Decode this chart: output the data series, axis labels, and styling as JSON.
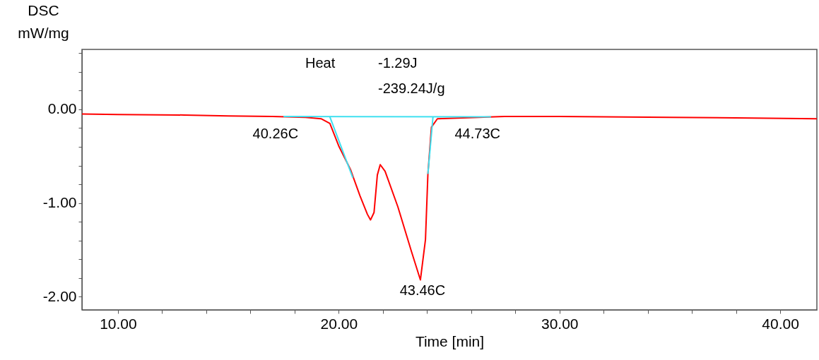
{
  "chart_data": {
    "type": "line",
    "xlabel": "Time  [min]",
    "ylabel": "DSC\nmW/mg",
    "xlim": [
      8.37,
      41.66
    ],
    "ylim": [
      -2.14,
      0.64
    ],
    "xticks": [
      {
        "value": 10,
        "label": "10.00"
      },
      {
        "value": 12,
        "label": null
      },
      {
        "value": 14,
        "label": null
      },
      {
        "value": 16,
        "label": null
      },
      {
        "value": 18,
        "label": null
      },
      {
        "value": 20,
        "label": "20.00"
      },
      {
        "value": 22,
        "label": null
      },
      {
        "value": 24,
        "label": null
      },
      {
        "value": 26,
        "label": null
      },
      {
        "value": 28,
        "label": null
      },
      {
        "value": 30,
        "label": "30.00"
      },
      {
        "value": 32,
        "label": null
      },
      {
        "value": 34,
        "label": null
      },
      {
        "value": 36,
        "label": null
      },
      {
        "value": 38,
        "label": null
      },
      {
        "value": 40,
        "label": "40.00"
      }
    ],
    "yticks": [
      {
        "value": -2,
        "label": "-2.00"
      },
      {
        "value": -1.8,
        "label": null
      },
      {
        "value": -1.6,
        "label": null
      },
      {
        "value": -1.4,
        "label": null
      },
      {
        "value": -1.2,
        "label": null
      },
      {
        "value": -1,
        "label": "-1.00"
      },
      {
        "value": -0.8,
        "label": null
      },
      {
        "value": -0.6,
        "label": null
      },
      {
        "value": -0.4,
        "label": null
      },
      {
        "value": -0.2,
        "label": null
      },
      {
        "value": 0,
        "label": "0.00"
      },
      {
        "value": 0.2,
        "label": null
      },
      {
        "value": 0.4,
        "label": null
      },
      {
        "value": 0.6,
        "label": null
      }
    ],
    "grid": false,
    "marker": "none",
    "line_style": "solid",
    "series": [
      {
        "color": "#ff0000",
        "x": [
          8.37,
          10,
          13,
          15,
          17,
          18.5,
          19.2,
          19.6,
          20.0,
          20.53,
          20.96,
          21.3,
          21.44,
          21.6,
          21.75,
          21.88,
          22.1,
          22.68,
          23.3,
          23.7,
          23.93,
          24.04,
          24.2,
          24.47,
          27.5,
          30,
          35,
          38,
          41.66
        ],
        "values": [
          -0.05,
          -0.055,
          -0.06,
          -0.07,
          -0.075,
          -0.085,
          -0.1,
          -0.15,
          -0.39,
          -0.64,
          -0.92,
          -1.12,
          -1.18,
          -1.1,
          -0.7,
          -0.59,
          -0.66,
          -1.04,
          -1.52,
          -1.82,
          -1.39,
          -0.69,
          -0.19,
          -0.1,
          -0.075,
          -0.075,
          -0.085,
          -0.09,
          -0.1
        ]
      },
      {
        "color": "#40e0f0",
        "x": [
          17.5,
          26.9
        ],
        "values": [
          -0.075,
          -0.08
        ]
      },
      {
        "color": "#40e0f0",
        "x": [
          19.6,
          20.64
        ],
        "values": [
          -0.08,
          -0.73
        ]
      },
      {
        "color": "#40e0f0",
        "x": [
          24.27,
          24.04
        ],
        "values": [
          -0.08,
          -0.69
        ]
      }
    ],
    "annotations": [
      "Heat",
      "-1.29J",
      "-239.24J/g",
      {
        "text": "40.26C",
        "x": 19.6,
        "y": -0.08
      },
      {
        "text": "43.46C",
        "x": 23.7,
        "y": -1.82
      },
      {
        "text": "44.73C",
        "x": 24.27,
        "y": -0.08
      }
    ]
  }
}
